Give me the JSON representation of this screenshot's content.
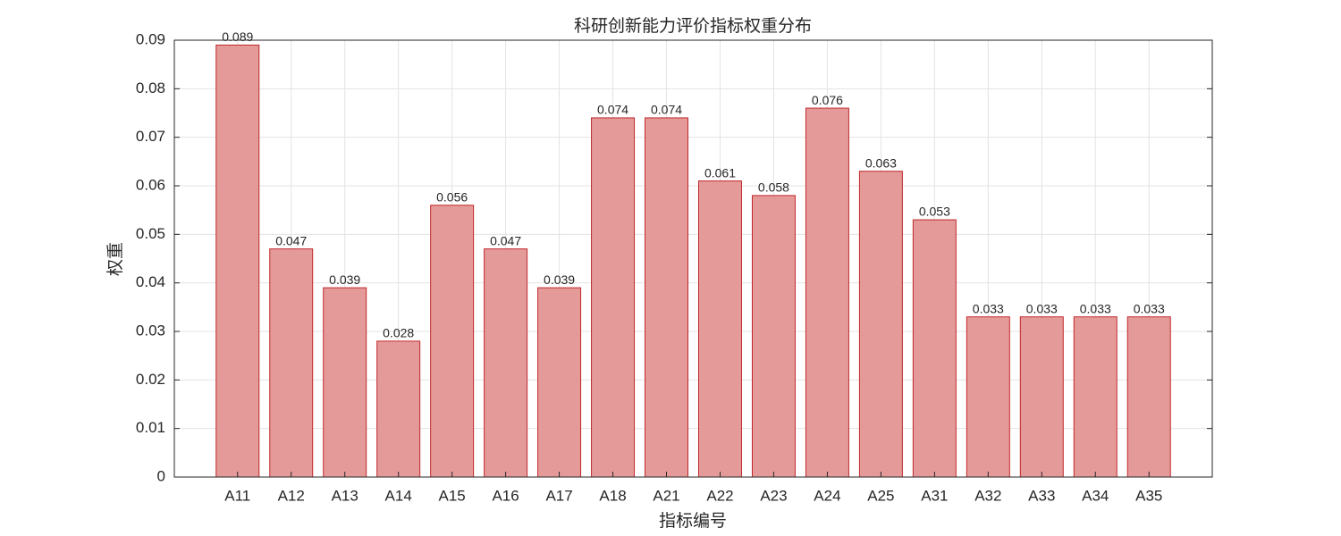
{
  "chart_data": {
    "type": "bar",
    "title": "科研创新能力评价指标权重分布",
    "x_label": "指标编号",
    "y_label": "权重",
    "categories": [
      "A11",
      "A12",
      "A13",
      "A14",
      "A15",
      "A16",
      "A17",
      "A18",
      "A21",
      "A22",
      "A23",
      "A24",
      "A25",
      "A31",
      "A32",
      "A33",
      "A34",
      "A35"
    ],
    "values": [
      0.089,
      0.047,
      0.039,
      0.028,
      0.056,
      0.047,
      0.039,
      0.074,
      0.074,
      0.061,
      0.058,
      0.076,
      0.063,
      0.053,
      0.033,
      0.033,
      0.033,
      0.033
    ],
    "color": "#e59a9a",
    "edge_color": "#c0282a",
    "ylim": [
      0,
      0.09
    ],
    "yticks": [
      0,
      0.01,
      0.02,
      0.03,
      0.04,
      0.05,
      0.06,
      0.07,
      0.08,
      0.09
    ],
    "grid": true
  }
}
